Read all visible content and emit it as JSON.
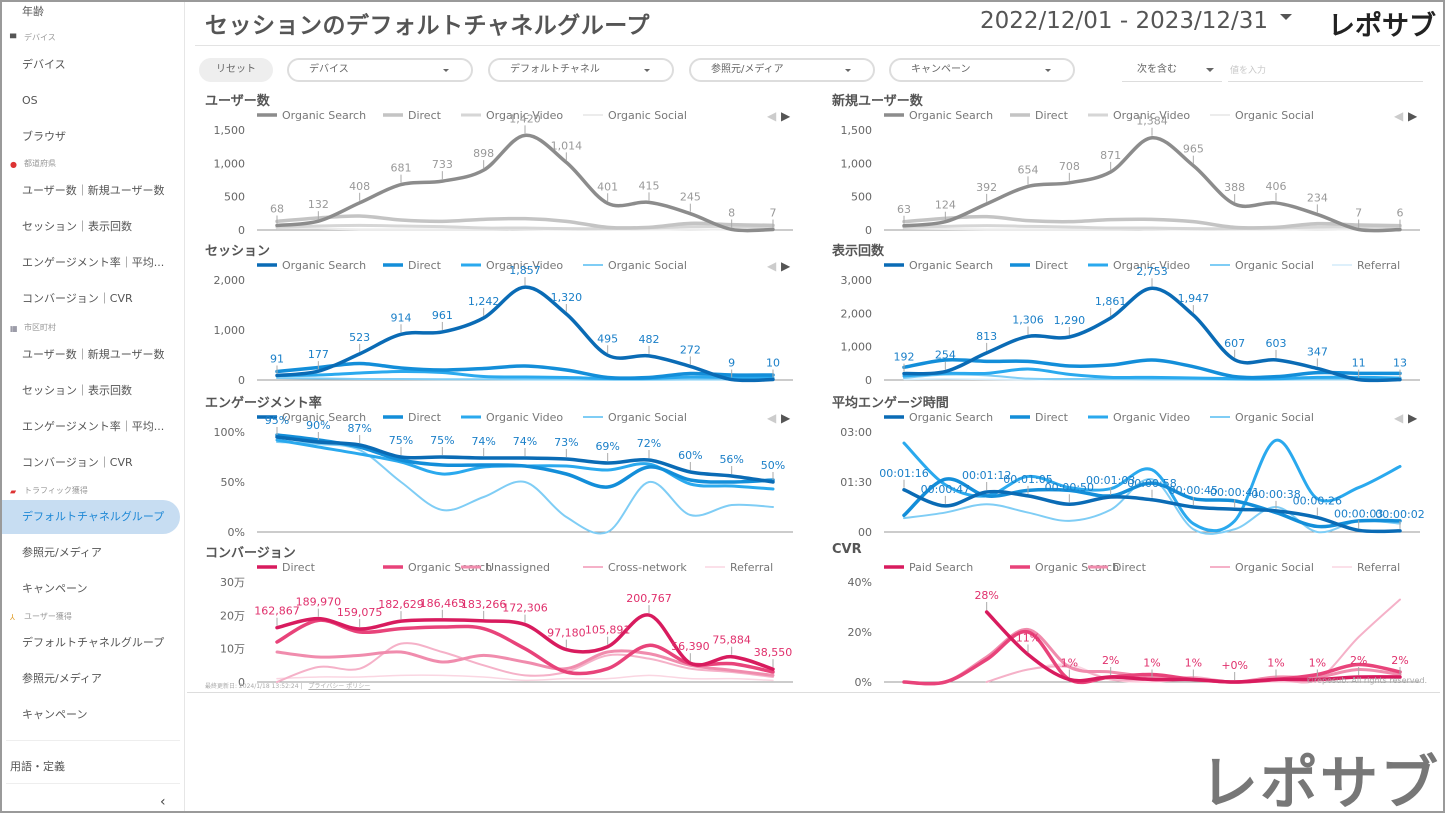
{
  "sidebar": {
    "top_item": "年齢",
    "sections": [
      {
        "label": "デバイス",
        "icon": "laptop-icon",
        "items": [
          "デバイス",
          "OS",
          "ブラウザ"
        ]
      },
      {
        "label": "都道府県",
        "icon": "japan-flag-icon",
        "items": [
          "ユーザー数｜新規ユーザー数",
          "セッション｜表示回数",
          "エンゲージメント率｜平均...",
          "コンバージョン｜CVR"
        ]
      },
      {
        "label": "市区町村",
        "icon": "building-icon",
        "items": [
          "ユーザー数｜新規ユーザー数",
          "セッション｜表示回数",
          "エンゲージメント率｜平均...",
          "コンバージョン｜CVR"
        ]
      },
      {
        "label": "トラフィック獲得",
        "icon": "car-icon",
        "items": [
          "デフォルトチャネルグループ",
          "参照元/メディア",
          "キャンペーン"
        ]
      },
      {
        "label": "ユーザー獲得",
        "icon": "person-icon",
        "items": [
          "デフォルトチャネルグループ",
          "参照元/メディア",
          "キャンペーン"
        ]
      }
    ],
    "active": "トラフィック獲得/デフォルトチャネルグループ",
    "terms": "用語・定義",
    "collapse": "‹"
  },
  "header": {
    "title": "セッションのデフォルトチャネルグループ",
    "date_range": "2022/12/01 - 2023/12/31",
    "logo": "レポサブ"
  },
  "filters": {
    "reset": "リセット",
    "dropdowns": [
      "デバイス",
      "デフォルトチャネル",
      "参照元/メディア",
      "キャンペーン"
    ],
    "match_type": "次を含む",
    "value_placeholder": "値を入力"
  },
  "footer": {
    "last_updated": "最終更新日: 2024/1/18 13:52:24",
    "privacy": "プライバシー ポリシー",
    "copyright": "©reposub. All rights reserved.",
    "big_logo": "レポサブ"
  },
  "palettes": {
    "gray": [
      "#8c8c8c",
      "#c4c4c4",
      "#d6d6d6",
      "#ececec",
      "#f3f3f3"
    ],
    "blue": [
      "#0a6bb5",
      "#138ed9",
      "#2aa9ee",
      "#7fcdf5",
      "#d3ecfa"
    ],
    "pink": [
      "#d81b5e",
      "#e8437a",
      "#f08cad",
      "#f5b1c8",
      "#fad6e2"
    ]
  },
  "chart_data": [
    {
      "id": "users",
      "type": "line",
      "title": "ユーザー数",
      "palette": "gray",
      "legend": [
        "Organic Search",
        "Direct",
        "Organic Video",
        "Organic Social"
      ],
      "yticks": [
        "0",
        "500",
        "1,000",
        "1,500"
      ],
      "ylim": [
        0,
        1500
      ],
      "series": [
        {
          "name": "Organic Search",
          "values": [
            68,
            132,
            408,
            681,
            733,
            898,
            1420,
            1014,
            401,
            415,
            245,
            8,
            7
          ]
        },
        {
          "name": "Direct",
          "values": [
            130,
            180,
            210,
            150,
            130,
            160,
            170,
            130,
            40,
            40,
            100,
            80,
            70
          ]
        },
        {
          "name": "Organic Video",
          "values": [
            40,
            60,
            70,
            60,
            50,
            30,
            30,
            20,
            20,
            30,
            50,
            50,
            40
          ]
        },
        {
          "name": "Organic Social",
          "values": [
            20,
            20,
            10,
            10,
            10,
            10,
            10,
            5,
            5,
            5,
            10,
            5,
            5
          ]
        }
      ],
      "labels": [
        "68",
        "132",
        "408",
        "681",
        "733",
        "898",
        "1,420",
        "1,014",
        "401",
        "415",
        "245",
        "8",
        "7"
      ]
    },
    {
      "id": "new-users",
      "type": "line",
      "title": "新規ユーザー数",
      "palette": "gray",
      "legend": [
        "Organic Search",
        "Direct",
        "Organic Video",
        "Organic Social"
      ],
      "yticks": [
        "0",
        "500",
        "1,000",
        "1,500"
      ],
      "ylim": [
        0,
        1500
      ],
      "series": [
        {
          "name": "Organic Search",
          "values": [
            63,
            124,
            392,
            654,
            708,
            871,
            1384,
            965,
            388,
            406,
            234,
            7,
            6
          ]
        },
        {
          "name": "Direct",
          "values": [
            125,
            175,
            200,
            140,
            125,
            155,
            160,
            125,
            40,
            40,
            95,
            75,
            65
          ]
        },
        {
          "name": "Organic Video",
          "values": [
            40,
            55,
            65,
            55,
            45,
            30,
            30,
            20,
            20,
            30,
            45,
            45,
            40
          ]
        },
        {
          "name": "Organic Social",
          "values": [
            20,
            15,
            10,
            10,
            10,
            10,
            10,
            5,
            5,
            5,
            10,
            5,
            5
          ]
        }
      ],
      "labels": [
        "63",
        "124",
        "392",
        "654",
        "708",
        "871",
        "1,384",
        "965",
        "388",
        "406",
        "234",
        "7",
        "6"
      ]
    },
    {
      "id": "sessions",
      "type": "line",
      "title": "セッション",
      "palette": "blue",
      "legend": [
        "Organic Search",
        "Direct",
        "Organic Video",
        "Organic Social"
      ],
      "yticks": [
        "0",
        "1,000",
        "2,000"
      ],
      "ylim": [
        0,
        2000
      ],
      "series": [
        {
          "name": "Organic Search",
          "values": [
            91,
            177,
            523,
            914,
            961,
            1242,
            1857,
            1320,
            495,
            482,
            272,
            9,
            10
          ]
        },
        {
          "name": "Direct",
          "values": [
            170,
            250,
            330,
            240,
            200,
            230,
            280,
            200,
            50,
            50,
            130,
            100,
            100
          ]
        },
        {
          "name": "Organic Video",
          "values": [
            90,
            100,
            140,
            170,
            150,
            70,
            60,
            50,
            30,
            30,
            60,
            50,
            40
          ]
        },
        {
          "name": "Organic Social",
          "values": [
            40,
            30,
            20,
            20,
            15,
            15,
            10,
            10,
            5,
            5,
            10,
            10,
            5
          ]
        }
      ],
      "labels": [
        "91",
        "177",
        "523",
        "914",
        "961",
        "1,242",
        "1,857",
        "1,320",
        "495",
        "482",
        "272",
        "9",
        "10"
      ]
    },
    {
      "id": "views",
      "type": "line",
      "title": "表示回数",
      "palette": "blue",
      "legend": [
        "Organic Search",
        "Direct",
        "Organic Video",
        "Organic Social",
        "Referral"
      ],
      "yticks": [
        "0",
        "1,000",
        "2,000",
        "3,000"
      ],
      "ylim": [
        0,
        3000
      ],
      "series": [
        {
          "name": "Organic Search",
          "values": [
            192,
            254,
            813,
            1306,
            1290,
            1861,
            2753,
            1947,
            607,
            603,
            347,
            11,
            13
          ]
        },
        {
          "name": "Direct",
          "values": [
            380,
            600,
            560,
            560,
            420,
            450,
            600,
            400,
            100,
            100,
            220,
            200,
            200
          ]
        },
        {
          "name": "Organic Video",
          "values": [
            120,
            200,
            200,
            330,
            170,
            80,
            80,
            60,
            40,
            40,
            80,
            80,
            60
          ]
        },
        {
          "name": "Organic Social",
          "values": [
            60,
            160,
            140,
            40,
            30,
            30,
            20,
            20,
            10,
            10,
            20,
            20,
            10
          ]
        },
        {
          "name": "Referral",
          "values": [
            20,
            30,
            20,
            10,
            10,
            10,
            10,
            10,
            5,
            5,
            10,
            10,
            5
          ]
        }
      ],
      "labels": [
        "192",
        "254",
        "813",
        "1,306",
        "1,290",
        "1,861",
        "2,753",
        "1,947",
        "607",
        "603",
        "347",
        "11",
        "13"
      ]
    },
    {
      "id": "engagement-rate",
      "type": "line",
      "title": "エンゲージメント率",
      "palette": "blue",
      "legend": [
        "Organic Search",
        "Direct",
        "Organic Video",
        "Organic Social"
      ],
      "yticks": [
        "0%",
        "50%",
        "100%"
      ],
      "ylim": [
        0,
        100
      ],
      "series": [
        {
          "name": "Organic Search",
          "values": [
            95,
            90,
            87,
            75,
            75,
            74,
            74,
            73,
            69,
            72,
            60,
            56,
            50
          ]
        },
        {
          "name": "Direct",
          "values": [
            97,
            92,
            85,
            72,
            67,
            67,
            66,
            58,
            45,
            65,
            52,
            50,
            52
          ]
        },
        {
          "name": "Organic Video",
          "values": [
            92,
            85,
            78,
            70,
            58,
            65,
            66,
            66,
            62,
            68,
            48,
            46,
            43
          ]
        },
        {
          "name": "Organic Social",
          "values": [
            90,
            88,
            82,
            50,
            22,
            35,
            50,
            15,
            0,
            50,
            17,
            27,
            25
          ]
        }
      ],
      "labels": [
        "95%",
        "90%",
        "87%",
        "75%",
        "75%",
        "74%",
        "74%",
        "73%",
        "69%",
        "72%",
        "60%",
        "56%",
        "50%"
      ]
    },
    {
      "id": "avg-engagement-time",
      "type": "line",
      "title": "平均エンゲージ時間",
      "palette": "blue",
      "legend": [
        "Organic Search",
        "Direct",
        "Organic Video",
        "Organic Social"
      ],
      "yticks": [
        "00",
        "01:30",
        "03:00"
      ],
      "ylim": [
        0,
        180
      ],
      "series": [
        {
          "name": "Organic Search",
          "values": [
            76,
            47,
            72,
            65,
            50,
            63,
            58,
            45,
            41,
            38,
            26,
            3,
            2
          ]
        },
        {
          "name": "Direct",
          "values": [
            30,
            95,
            65,
            75,
            75,
            65,
            88,
            60,
            56,
            35,
            10,
            20,
            20
          ]
        },
        {
          "name": "Organic Video",
          "values": [
            160,
            85,
            65,
            100,
            80,
            78,
            112,
            15,
            20,
            165,
            60,
            80,
            118
          ]
        },
        {
          "name": "Organic Social",
          "values": [
            25,
            35,
            50,
            35,
            20,
            40,
            95,
            5,
            5,
            45,
            0,
            20,
            15
          ]
        }
      ],
      "labels": [
        "00:01:16",
        "00:00:47",
        "00:01:12",
        "00:01:05",
        "00:00:50",
        "00:01:03",
        "00:00:58",
        "00:00:45",
        "00:00:41",
        "00:00:38",
        "00:00:26",
        "00:00:03",
        "00:00:02"
      ]
    },
    {
      "id": "conversions",
      "type": "line",
      "title": "コンバージョン",
      "palette": "pink",
      "legend": [
        "Direct",
        "Organic Search",
        "Unassigned",
        "Cross-network",
        "Referral"
      ],
      "yticks": [
        "0",
        "10万",
        "20万",
        "30万"
      ],
      "ylim": [
        0,
        300000
      ],
      "series": [
        {
          "name": "Direct",
          "values": [
            162867,
            189970,
            159075,
            182629,
            186465,
            183266,
            172306,
            97180,
            105891,
            200767,
            56390,
            75884,
            38550
          ]
        },
        {
          "name": "Organic Search",
          "values": [
            120000,
            185000,
            150000,
            160000,
            165000,
            160000,
            100000,
            30000,
            40000,
            110000,
            55000,
            55000,
            30000
          ]
        },
        {
          "name": "Unassigned",
          "values": [
            90000,
            75000,
            80000,
            90000,
            60000,
            80000,
            60000,
            40000,
            90000,
            85000,
            50000,
            35000,
            20000
          ]
        },
        {
          "name": "Cross-network",
          "values": [
            0,
            45000,
            40000,
            115000,
            90000,
            50000,
            20000,
            30000,
            80000,
            70000,
            40000,
            30000,
            15000
          ]
        },
        {
          "name": "Referral",
          "values": [
            10000,
            15000,
            15000,
            20000,
            20000,
            15000,
            5000,
            10000,
            10000,
            20000,
            10000,
            10000,
            5000
          ]
        }
      ],
      "labels": [
        "162,867",
        "189,970",
        "159,075",
        "182,629",
        "186,465",
        "183,266",
        "172,306",
        "97,180",
        "105,891",
        "200,767",
        "56,390",
        "75,884",
        "38,550"
      ]
    },
    {
      "id": "cvr",
      "type": "line",
      "title": "CVR",
      "palette": "pink",
      "legend": [
        "Paid Search",
        "Organic Search",
        "Direct",
        "Organic Social",
        "Referral"
      ],
      "yticks": [
        "0%",
        "20%",
        "40%"
      ],
      "ylim": [
        0,
        40
      ],
      "series": [
        {
          "name": "Paid Search",
          "values": [
            null,
            null,
            28,
            11,
            1,
            2,
            1,
            1,
            0,
            1,
            1,
            2,
            2
          ]
        },
        {
          "name": "Organic Search",
          "values": [
            0,
            0,
            9,
            20,
            1,
            2,
            3,
            1,
            0,
            1,
            3,
            7,
            4
          ]
        },
        {
          "name": "Direct",
          "values": [
            0,
            0,
            10,
            21,
            6,
            4,
            2,
            1,
            0,
            2,
            2,
            5,
            3
          ]
        },
        {
          "name": "Organic Social",
          "values": [
            null,
            null,
            0,
            5,
            6,
            1,
            1,
            2,
            0,
            1,
            1,
            18,
            33
          ]
        },
        {
          "name": "Referral",
          "values": [
            null,
            null,
            0,
            5,
            7,
            1,
            0,
            1,
            0,
            0,
            0,
            2,
            2
          ]
        }
      ],
      "labels": [
        null,
        null,
        "28%",
        "11%",
        "1%",
        "2%",
        "1%",
        "1%",
        "+0%",
        "1%",
        "1%",
        "2%",
        "2%"
      ]
    }
  ]
}
